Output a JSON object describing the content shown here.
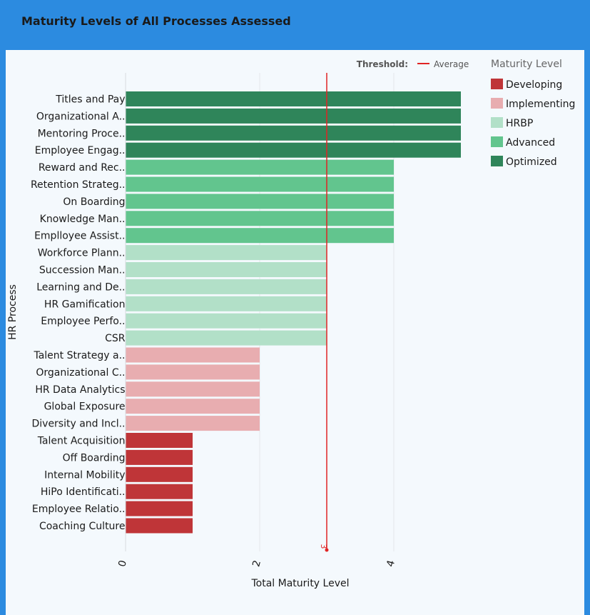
{
  "header": {
    "title": "Maturity Levels of All Processes Assessed"
  },
  "threshold": {
    "label": "Threshold:",
    "line_name": "Average",
    "value": 3,
    "value_label": "3",
    "color": "#e02424"
  },
  "legend": {
    "title": "Maturity Level",
    "items": [
      {
        "name": "Developing",
        "color": "#bf3538"
      },
      {
        "name": "Implementing",
        "color": "#e8adb0"
      },
      {
        "name": "HRBP",
        "color": "#b2e0c8"
      },
      {
        "name": "Advanced",
        "color": "#62c58e"
      },
      {
        "name": "Optimized",
        "color": "#2f855a"
      }
    ]
  },
  "chart_data": {
    "type": "bar",
    "orientation": "horizontal",
    "xlabel": "Total Maturity Level",
    "ylabel": "HR Process",
    "xlim": [
      0,
      5
    ],
    "xticks": [
      "0",
      "2",
      "4"
    ],
    "xtick_values": [
      0,
      2,
      4
    ],
    "grid": true,
    "legend_position": "right",
    "categories": [
      "Titles and Pay",
      "Organizational A..",
      "Mentoring Proce..",
      "Employee Engag..",
      "Reward and Rec..",
      "Retention Strateg..",
      "On Boarding",
      "Knowledge Man..",
      "Emplloyee Assist..",
      "Workforce Plann..",
      "Succession Man..",
      "Learning and De..",
      "HR Gamification",
      "Employee Perfo..",
      "CSR",
      "Talent Strategy a..",
      "Organizational C..",
      "HR Data Analytics",
      "Global Exposure",
      "Diversity and Incl..",
      "Talent Acquisition",
      "Off Boarding",
      "Internal Mobility",
      "HiPo Identificati..",
      "Employee Relatio..",
      "Coaching Culture"
    ],
    "values": [
      5,
      5,
      5,
      5,
      4,
      4,
      4,
      4,
      4,
      3,
      3,
      3,
      3,
      3,
      3,
      2,
      2,
      2,
      2,
      2,
      1,
      1,
      1,
      1,
      1,
      1
    ],
    "levels": [
      "Optimized",
      "Optimized",
      "Optimized",
      "Optimized",
      "Advanced",
      "Advanced",
      "Advanced",
      "Advanced",
      "Advanced",
      "HRBP",
      "HRBP",
      "HRBP",
      "HRBP",
      "HRBP",
      "HRBP",
      "Implementing",
      "Implementing",
      "Implementing",
      "Implementing",
      "Implementing",
      "Developing",
      "Developing",
      "Developing",
      "Developing",
      "Developing",
      "Developing"
    ]
  }
}
